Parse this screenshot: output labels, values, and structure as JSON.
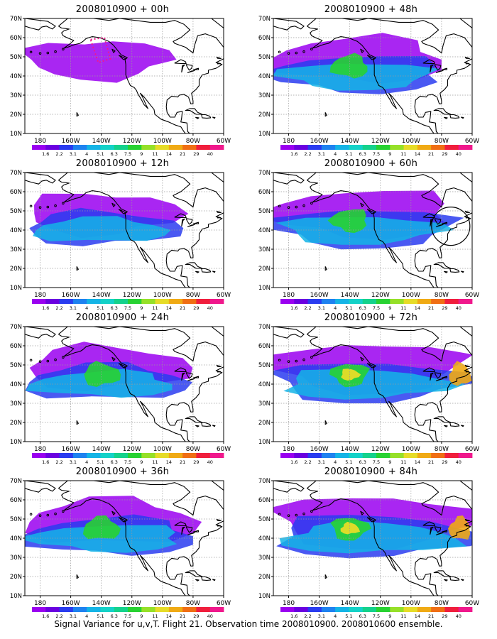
{
  "colorbar": {
    "labels": [
      "1.6",
      "2.2",
      "3.1",
      "4",
      "5.1",
      "6.3",
      "7.5",
      "9",
      "11",
      "14",
      "21",
      "29",
      "40"
    ],
    "colors": [
      "#9a00f0",
      "#6a00e0",
      "#2a3cf0",
      "#1e82f0",
      "#14b4e6",
      "#14d2c8",
      "#14d28c",
      "#28d232",
      "#96e028",
      "#e6dc28",
      "#f0aa14",
      "#f06e14",
      "#f01e3c",
      "#f0188c"
    ]
  },
  "axes": {
    "lat_ticks": [
      "10N",
      "20N",
      "30N",
      "40N",
      "50N",
      "60N",
      "70N"
    ],
    "lon_ticks": [
      "180",
      "160W",
      "140W",
      "120W",
      "100W",
      "80W",
      "60W"
    ]
  },
  "panels": [
    {
      "title": "2008010900 + 00h",
      "intensity": 0.4,
      "hatch": true,
      "circle": false
    },
    {
      "title": "2008010900 + 12h",
      "intensity": 0.5,
      "hatch": false,
      "circle": false
    },
    {
      "title": "2008010900 + 24h",
      "intensity": 0.6,
      "hatch": false,
      "circle": false
    },
    {
      "title": "2008010900 + 36h",
      "intensity": 0.7,
      "hatch": false,
      "circle": false
    },
    {
      "title": "2008010900 + 48h",
      "intensity": 0.7,
      "hatch": false,
      "circle": false
    },
    {
      "title": "2008010900 + 60h",
      "intensity": 0.8,
      "hatch": false,
      "circle": true
    },
    {
      "title": "2008010900 + 72h",
      "intensity": 0.9,
      "hatch": false,
      "circle": false
    },
    {
      "title": "2008010900 + 84h",
      "intensity": 1.0,
      "hatch": false,
      "circle": false
    }
  ],
  "footer": "Signal Variance for u,v,T. Flight 21. Observation time 2008010900. 2008010600 ensemble."
}
